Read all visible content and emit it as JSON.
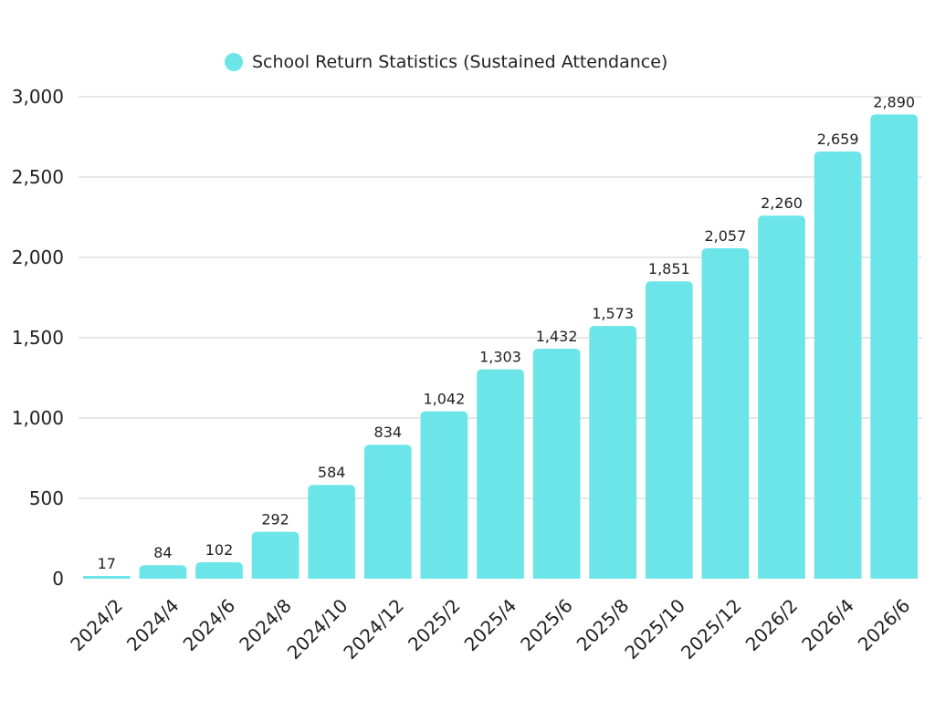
{
  "chart_data": {
    "type": "bar",
    "categories": [
      "2024/2",
      "2024/4",
      "2024/6",
      "2024/8",
      "2024/10",
      "2024/12",
      "2025/2",
      "2025/4",
      "2025/6",
      "2025/8",
      "2025/10",
      "2025/12",
      "2026/2",
      "2026/4",
      "2026/6"
    ],
    "series": [
      {
        "name": "School Return Statistics (Sustained Attendance)",
        "values": [
          17,
          84,
          102,
          292,
          584,
          834,
          1042,
          1303,
          1432,
          1573,
          1851,
          2057,
          2260,
          2659,
          2890
        ],
        "color": "#6ce5e8"
      }
    ],
    "data_labels": [
      "17",
      "84",
      "102",
      "292",
      "584",
      "834",
      "1,042",
      "1,303",
      "1,432",
      "1,573",
      "1,851",
      "2,057",
      "2,260",
      "2,659",
      "2,890"
    ],
    "y_ticks": [
      0,
      500,
      1000,
      1500,
      2000,
      2500,
      3000
    ],
    "y_tick_labels": [
      "0",
      "500",
      "1,000",
      "1,500",
      "2,000",
      "2,500",
      "3,000"
    ],
    "ylim": [
      0,
      3000
    ],
    "grid": true,
    "legend": "top-center",
    "title": "",
    "xlabel": "",
    "ylabel": ""
  }
}
